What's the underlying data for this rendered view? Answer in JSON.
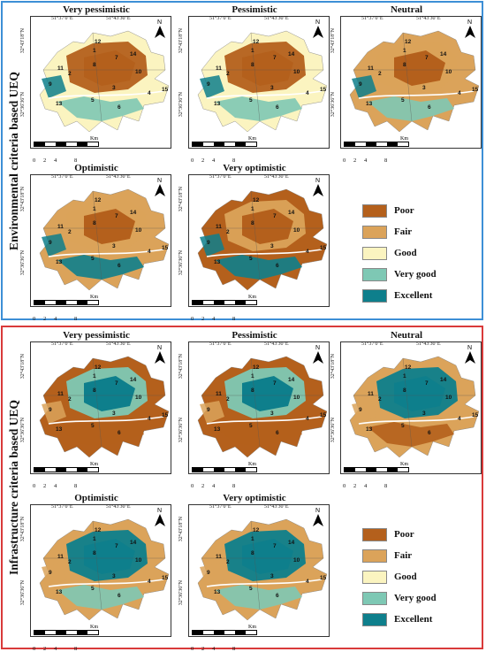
{
  "sections": [
    {
      "label": "Environmental criteria based UEQ",
      "theme": "env"
    },
    {
      "label": "Infrastructure criteria based UEQ",
      "theme": "infra"
    }
  ],
  "scenarios": [
    "Very pessimistic",
    "Pessimistic",
    "Neutral",
    "Optimistic",
    "Very optimistic"
  ],
  "coords": {
    "lon1": "51°37'0\"E",
    "lon2": "51°43'30\"E",
    "lat1": "32°43'18\"N",
    "lat2": "32°36'36\"N"
  },
  "north_label": "N",
  "scale": {
    "unit": "Km",
    "ticks": [
      "0",
      "2",
      "4",
      "8"
    ]
  },
  "zones": [
    "1",
    "2",
    "3",
    "4",
    "5",
    "6",
    "7",
    "8",
    "9",
    "10",
    "11",
    "12",
    "13",
    "14",
    "15"
  ],
  "legend": [
    {
      "label": "Poor",
      "color": "#b4601c"
    },
    {
      "label": "Fair",
      "color": "#dba35a"
    },
    {
      "label": "Good",
      "color": "#fbf4c0"
    },
    {
      "label": "Very good",
      "color": "#7ec8b4"
    },
    {
      "label": "Excellent",
      "color": "#0e7f8c"
    }
  ]
}
